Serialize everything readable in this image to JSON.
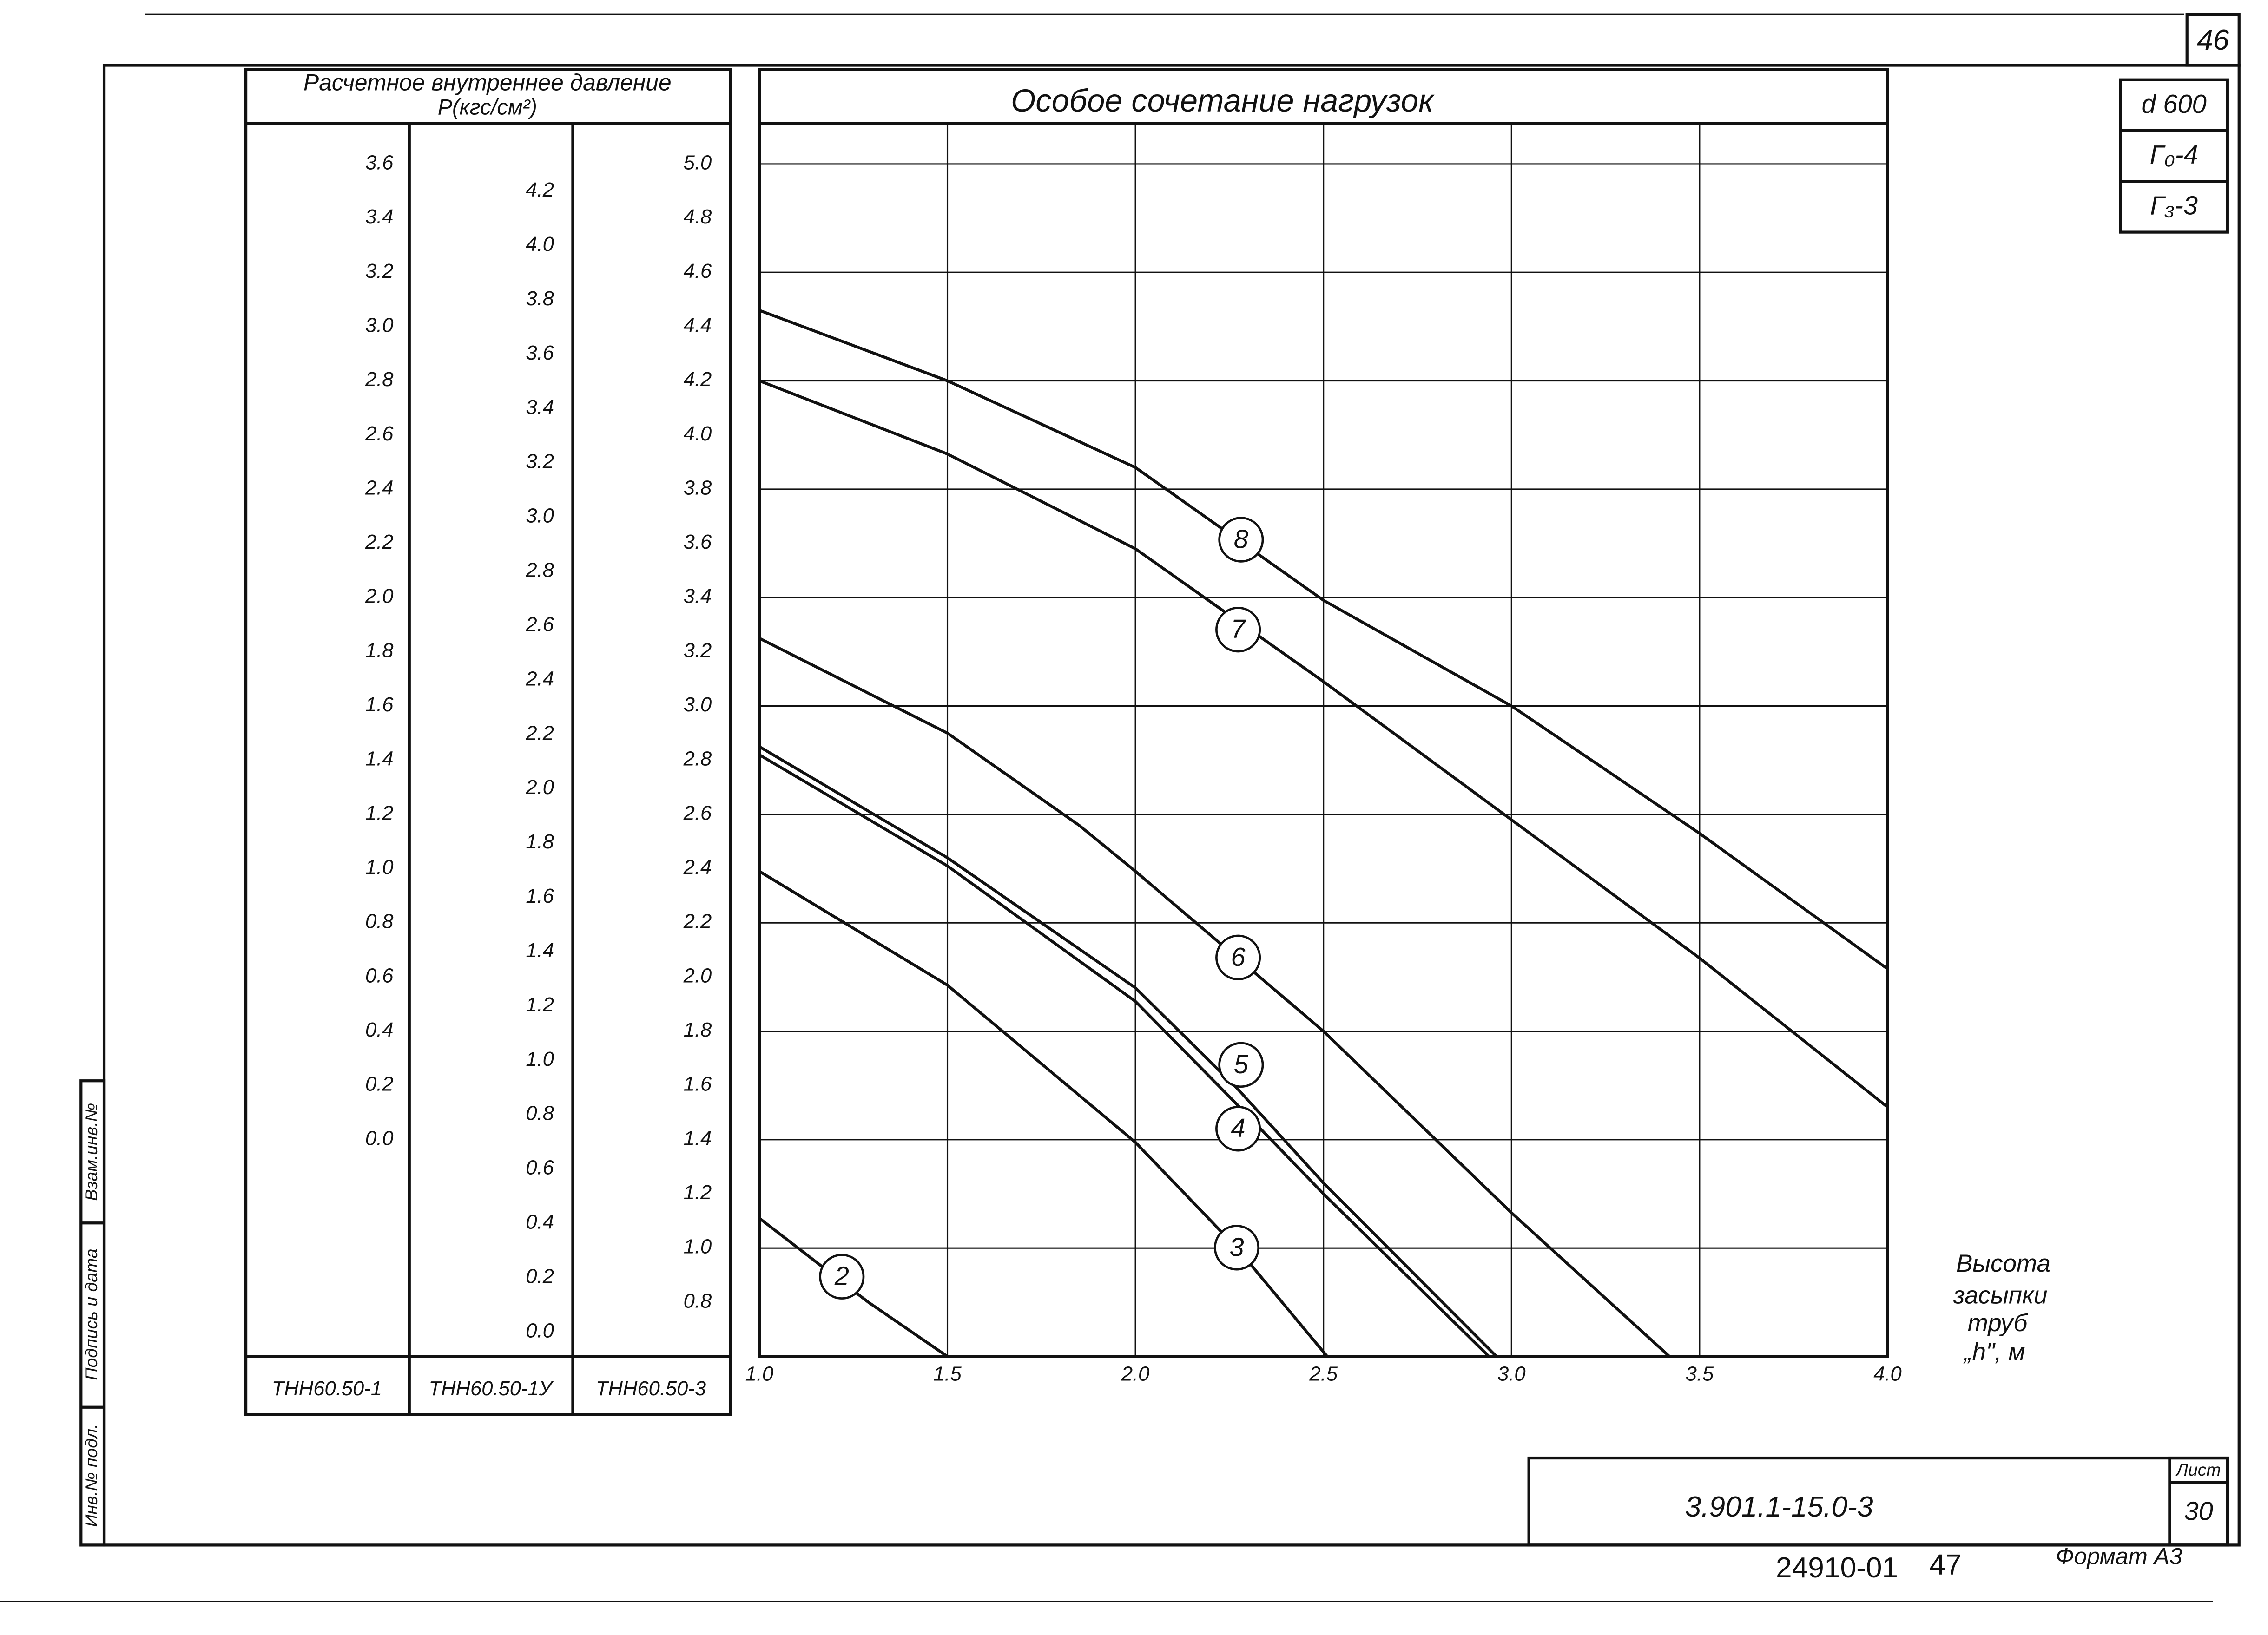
{
  "page_number": "46",
  "side_stamp": [
    "Взам.инв.№",
    "Подпись и дата",
    "Инв.№ подл."
  ],
  "corner_boxes": [
    "d 600",
    "Г₀-4",
    "Г₃-3"
  ],
  "scale_table": {
    "title": "Расчетное внутреннее давление",
    "unit": "Р(кгс/см²)",
    "columns": [
      {
        "name": "ТНН60.50-1",
        "lim": [
          -0.8,
          3.75
        ],
        "ticks": [
          3.6,
          3.4,
          3.2,
          {
            "value": 3,
            "label": "3.0"
          },
          2.8,
          2.6,
          2.4,
          2.2,
          {
            "value": 2,
            "label": "2.0"
          },
          1.8,
          1.6,
          1.4,
          1.2,
          {
            "value": 1,
            "label": "1.0"
          },
          0.8,
          0.6,
          0.4,
          0.2,
          {
            "value": 0,
            "label": "0.0"
          }
        ]
      },
      {
        "name": "ТНН60.50-1У",
        "lim": [
          -0.09,
          4.45
        ],
        "ticks": [
          4.2,
          {
            "value": 4,
            "label": "4.0"
          },
          3.8,
          3.6,
          3.4,
          3.2,
          {
            "value": 3,
            "label": "3.0"
          },
          2.8,
          2.6,
          2.4,
          2.2,
          {
            "value": 2,
            "label": "2.0"
          },
          1.8,
          1.6,
          1.4,
          1.2,
          {
            "value": 1,
            "label": "1.0"
          },
          0.8,
          0.6,
          0.4,
          0.2,
          {
            "value": 0,
            "label": "0.0"
          }
        ]
      },
      {
        "name": "ТНН60.50-3",
        "lim": [
          0.6,
          5.15
        ],
        "ticks": [
          {
            "value": 5,
            "label": "5.0"
          },
          4.8,
          4.6,
          4.4,
          4.2,
          {
            "value": 4,
            "label": "4.0"
          },
          3.8,
          3.6,
          3.4,
          3.2,
          {
            "value": 3,
            "label": "3.0"
          },
          2.8,
          2.6,
          2.4,
          2.2,
          {
            "value": 2,
            "label": "2.0"
          },
          1.8,
          1.6,
          1.4,
          1.2,
          {
            "value": 1,
            "label": "1.0"
          },
          0.8
        ]
      }
    ]
  },
  "chart_data": {
    "type": "line",
    "title": "Особое сочетание нагрузок",
    "x_label": [
      "Высота",
      "засыпки",
      "труб",
      "„h\", м"
    ],
    "xlim": [
      1,
      4
    ],
    "xticks": [
      {
        "value": 1,
        "label": "1.0"
      },
      1.5,
      {
        "value": 2,
        "label": "2.0"
      },
      2.5,
      {
        "value": 3,
        "label": "3.0"
      },
      3.5,
      {
        "value": 4,
        "label": "4.0"
      }
    ],
    "ylim": [
      0.6,
      5.15
    ],
    "grid": true,
    "series": [
      {
        "name": "2",
        "color": "#111",
        "x": [
          1.0,
          1.29,
          1.5
        ],
        "values": [
          1.11,
          0.8,
          0.6
        ]
      },
      {
        "name": "3",
        "color": "#111",
        "x": [
          1.0,
          1.5,
          2.0,
          2.27,
          2.51
        ],
        "values": [
          2.39,
          1.97,
          1.39,
          1.0,
          0.6
        ]
      },
      {
        "name": "4",
        "color": "#111",
        "x": [
          1.0,
          1.5,
          2.0,
          2.27,
          2.5,
          2.94
        ],
        "values": [
          2.82,
          2.41,
          1.91,
          1.53,
          1.2,
          0.6
        ]
      },
      {
        "name": "5",
        "color": "#111",
        "x": [
          1.0,
          1.5,
          2.0,
          2.27,
          2.5,
          2.96
        ],
        "values": [
          2.85,
          2.44,
          1.96,
          1.59,
          1.24,
          0.6
        ]
      },
      {
        "name": "6",
        "color": "#111",
        "x": [
          1.0,
          1.5,
          1.85,
          2.0,
          2.5,
          3.0,
          3.42
        ],
        "values": [
          3.25,
          2.9,
          2.56,
          2.39,
          1.8,
          1.13,
          0.6
        ]
      },
      {
        "name": "7",
        "color": "#111",
        "x": [
          1.0,
          1.5,
          2.0,
          2.5,
          3.0,
          3.5,
          4.0
        ],
        "values": [
          4.2,
          3.93,
          3.58,
          3.09,
          2.58,
          2.07,
          1.52
        ]
      },
      {
        "name": "8",
        "color": "#111",
        "x": [
          1.0,
          1.5,
          2.0,
          2.5,
          3.0,
          3.5,
          4.0
        ],
        "values": [
          4.46,
          4.2,
          3.88,
          3.39,
          3.0,
          2.53,
          2.03
        ]
      }
    ]
  },
  "title_block": {
    "code": "3.901.1-15.0-3",
    "sheet_label": "Лист",
    "sheet": "30"
  },
  "footer": {
    "archive": "24910-01",
    "number": "47",
    "format": "Формат А3"
  }
}
